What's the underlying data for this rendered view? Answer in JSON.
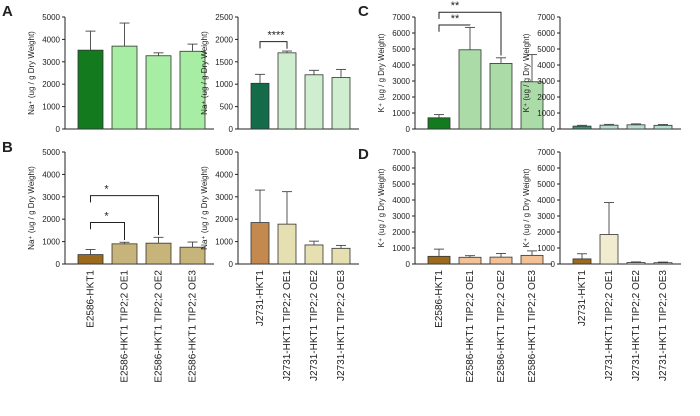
{
  "panel_letters": [
    "A",
    "B",
    "C",
    "D"
  ],
  "chart_data": [
    {
      "id": "A-left",
      "panel": "A",
      "type": "bar",
      "ylabel": "Na⁺ (ug / g Dry Weight)",
      "ylim": [
        0,
        5000
      ],
      "yticks": [
        0,
        1000,
        2000,
        3000,
        4000,
        5000
      ],
      "categories": [
        "E2586-HKT1",
        "E2586-HKT1 TIP2;2 OE1",
        "E2586-HKT1 TIP2;2 OE2",
        "E2586-HKT1 TIP2;2 OE3"
      ],
      "values": [
        3520,
        3700,
        3270,
        3470
      ],
      "errors": [
        850,
        1030,
        130,
        320
      ],
      "colors": [
        "#137a1e",
        "#a7eda3",
        "#a7eda3",
        "#a7eda3"
      ],
      "significance": []
    },
    {
      "id": "A-right",
      "panel": "A",
      "type": "bar",
      "ylabel": "Na⁺ (ug / g Dry Weight)",
      "ylim": [
        0,
        2500
      ],
      "yticks": [
        0,
        500,
        1000,
        1500,
        2000,
        2500
      ],
      "categories": [
        "J2731-HKT1",
        "J2731-HKT1 TIP2;2 OE1",
        "J2731-HKT1 TIP2;2 OE2",
        "J2731-HKT1 TIP2;2 OE3"
      ],
      "values": [
        1020,
        1700,
        1210,
        1150
      ],
      "errors": [
        200,
        40,
        100,
        180
      ],
      "colors": [
        "#146b4a",
        "#cfeed0",
        "#cfeed0",
        "#cfeed0"
      ],
      "significance": [
        {
          "from": 0,
          "to": 1,
          "level": 1950,
          "label": "****"
        }
      ]
    },
    {
      "id": "C-left",
      "panel": "C",
      "type": "bar",
      "ylabel": "K⁺ (ug / g Dry Weight)",
      "ylim": [
        0,
        7000
      ],
      "yticks": [
        0,
        1000,
        2000,
        3000,
        4000,
        5000,
        6000,
        7000
      ],
      "categories": [
        "E2586-HKT1",
        "E2586-HKT1 TIP2;2 OE1",
        "E2586-HKT1 TIP2;2 OE2",
        "E2586-HKT1 TIP2;2 OE3"
      ],
      "values": [
        700,
        4950,
        4100,
        2950
      ],
      "errors": [
        200,
        1400,
        350,
        1700
      ],
      "colors": [
        "#137a1e",
        "#abdca8",
        "#abdca8",
        "#abdca8"
      ],
      "significance": [
        {
          "from": 0,
          "to": 1,
          "level": 6500,
          "label": "**"
        },
        {
          "from": 0,
          "to": 2,
          "level": 7300,
          "label": "**"
        }
      ]
    },
    {
      "id": "C-right",
      "panel": "C",
      "type": "bar",
      "ylabel": "K⁺ (ug / g Dry Weight)",
      "ylim": [
        0,
        7000
      ],
      "yticks": [
        0,
        1000,
        2000,
        3000,
        4000,
        5000,
        6000,
        7000
      ],
      "categories": [
        "J2731-HKT1",
        "J2731-HKT1 TIP2;2 OE1",
        "J2731-HKT1 TIP2;2 OE2",
        "J2731-HKT1 TIP2;2 OE3"
      ],
      "values": [
        180,
        240,
        260,
        230
      ],
      "errors": [
        50,
        50,
        60,
        50
      ],
      "colors": [
        "#3f8f7c",
        "#b7ddd4",
        "#b7ddd4",
        "#b7ddd4"
      ],
      "significance": []
    },
    {
      "id": "B-left",
      "panel": "B",
      "type": "bar",
      "ylabel": "Na⁺ (ug / g Dry Weight)",
      "ylim": [
        0,
        5000
      ],
      "yticks": [
        0,
        1000,
        2000,
        3000,
        4000,
        5000
      ],
      "categories": [
        "E2586-HKT1",
        "E2586-HKT1 TIP2;2 OE1",
        "E2586-HKT1 TIP2;2 OE2",
        "E2586-HKT1 TIP2;2 OE3"
      ],
      "values": [
        420,
        900,
        930,
        750
      ],
      "errors": [
        230,
        70,
        260,
        230
      ],
      "colors": [
        "#9c6a1c",
        "#c7b47a",
        "#c7b47a",
        "#c7b47a"
      ],
      "significance": [
        {
          "from": 0,
          "to": 1,
          "level": 1850,
          "label": "*"
        },
        {
          "from": 0,
          "to": 2,
          "level": 3050,
          "label": "*"
        }
      ]
    },
    {
      "id": "B-right",
      "panel": "B",
      "type": "bar",
      "ylabel": "Na⁺ (ug / g Dry Weight)",
      "ylim": [
        0,
        5000
      ],
      "yticks": [
        0,
        1000,
        2000,
        3000,
        4000,
        5000
      ],
      "categories": [
        "J2731-HKT1",
        "J2731-HKT1 TIP2;2 OE1",
        "J2731-HKT1 TIP2;2 OE2",
        "J2731-HKT1 TIP2;2 OE3"
      ],
      "values": [
        1850,
        1780,
        850,
        700
      ],
      "errors": [
        1450,
        1450,
        170,
        130
      ],
      "colors": [
        "#c3894e",
        "#e6dfb2",
        "#e6dfb2",
        "#e6dfb2"
      ],
      "significance": []
    },
    {
      "id": "D-left",
      "panel": "D",
      "type": "bar",
      "ylabel": "K⁺ (ug / g Dry Weight)",
      "ylim": [
        0,
        7000
      ],
      "yticks": [
        0,
        1000,
        2000,
        3000,
        4000,
        5000,
        6000,
        7000
      ],
      "categories": [
        "E2586-HKT1",
        "E2586-HKT1 TIP2;2 OE1",
        "E2586-HKT1 TIP2;2 OE2",
        "E2586-HKT1 TIP2;2 OE3"
      ],
      "values": [
        480,
        420,
        430,
        540
      ],
      "errors": [
        450,
        100,
        230,
        280
      ],
      "colors": [
        "#9c6a1c",
        "#f3c196",
        "#f3c196",
        "#f3c196"
      ],
      "significance": []
    },
    {
      "id": "D-right",
      "panel": "D",
      "type": "bar",
      "ylabel": "K⁺ (ug / g Dry Weight)",
      "ylim": [
        0,
        7000
      ],
      "yticks": [
        0,
        1000,
        2000,
        3000,
        4000,
        5000,
        6000,
        7000
      ],
      "categories": [
        "J2731-HKT1",
        "J2731-HKT1 TIP2;2 OE1",
        "J2731-HKT1 TIP2;2 OE2",
        "J2731-HKT1 TIP2;2 OE3"
      ],
      "values": [
        320,
        1840,
        90,
        80
      ],
      "errors": [
        320,
        2000,
        40,
        40
      ],
      "colors": [
        "#9c6a1c",
        "#f1ebcf",
        "#f1ebcf",
        "#f1ebcf"
      ],
      "significance": []
    }
  ]
}
